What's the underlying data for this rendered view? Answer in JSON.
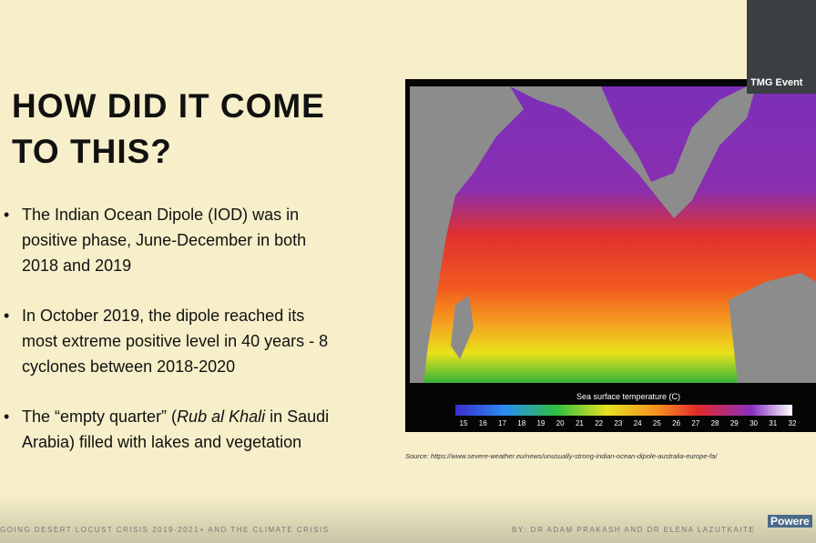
{
  "slide": {
    "title": "HOW DID IT COME TO THIS?",
    "bullets": [
      [
        {
          "text": "The Indian Ocean Dipole (IOD) was in positive phase, June-December in both 2018 and 2019",
          "italic": false
        }
      ],
      [
        {
          "text": "In October 2019, the dipole reached its most extreme positive level in 40 years  - 8 cyclones between 2018-2020",
          "italic": false
        }
      ],
      [
        {
          "text": "The “empty quarter” (",
          "italic": false
        },
        {
          "text": "Rub al Khali",
          "italic": true
        },
        {
          "text": " in Saudi Arabia) filled with lakes and vegetation",
          "italic": false
        }
      ]
    ],
    "figure": {
      "colorbar_label": "Sea surface temperature (C)",
      "colorbar_ticks": [
        15,
        16,
        17,
        18,
        19,
        20,
        21,
        22,
        23,
        24,
        25,
        26,
        27,
        28,
        29,
        30,
        31,
        32
      ],
      "source": "Source: https://www.severe-weather.eu/news/unusually-strong-indian-ocean-dipole-australia-europe-fa/"
    },
    "footer": {
      "left": "GOING DESERT LOCUST CRISIS 2019-2021+ AND THE CLIMATE CRISIS",
      "right": "BY: DR ADAM PRAKASH AND DR ELENA LAZUTKAITE"
    }
  },
  "video": {
    "label": "TMG Event"
  },
  "logo": {
    "text": "Powere"
  }
}
